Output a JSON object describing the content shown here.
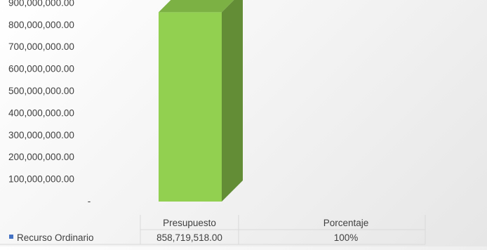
{
  "chart_data": {
    "type": "bar",
    "three_d": true,
    "categories": [
      "Presupuesto",
      "Porcentaje"
    ],
    "series": [
      {
        "name": "Recurso Ordinario",
        "color": "#92d050",
        "values": [
          858719518.0,
          null
        ],
        "table_labels": [
          "858,719,518.00",
          "100%"
        ]
      }
    ],
    "y_ticks": [
      "-",
      "100,000,000.00",
      "200,000,000.00",
      "300,000,000.00",
      "400,000,000.00",
      "500,000,000.00",
      "600,000,000.00",
      "700,000,000.00",
      "800,000,000.00",
      "900,000,000.00"
    ],
    "ylim": [
      0,
      900000000
    ],
    "grid": false,
    "legend_marker_color": "#4472c4",
    "data_table": true
  }
}
